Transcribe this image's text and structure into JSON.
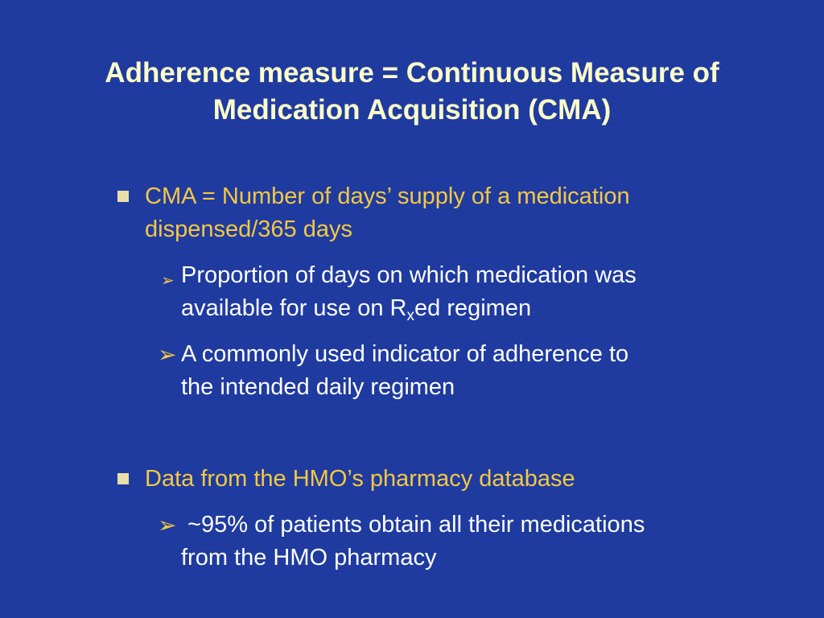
{
  "title": {
    "line1": "Adherence measure = Continuous Measure of",
    "line2": "Medication Acquisition (CMA)"
  },
  "bullets": [
    {
      "text_line1": "CMA = Number of days’ supply of a medication",
      "text_line2": "dispensed/365 days",
      "sub": [
        {
          "line1": "Proportion of days on which medication was",
          "line2_pre": "available for use on R",
          "line2_sub": "x",
          "line2_post": "ed regimen"
        },
        {
          "line1": "A commonly used indicator of adherence to",
          "line2": "the intended daily regimen"
        }
      ]
    },
    {
      "text_line1": "Data from the HMO’s pharmacy database",
      "sub": [
        {
          "line1": " ~95% of patients obtain all their medications",
          "line2": "from the HMO pharmacy"
        }
      ]
    }
  ],
  "icons": {
    "level1_bullet": "square-bullet-icon",
    "level2_bullet": "arrowhead-bullet-icon"
  },
  "colors": {
    "background": "#1f3ba0",
    "title": "#fdfdc9",
    "level1_text": "#f4c842",
    "level2_text": "#ffffff"
  }
}
